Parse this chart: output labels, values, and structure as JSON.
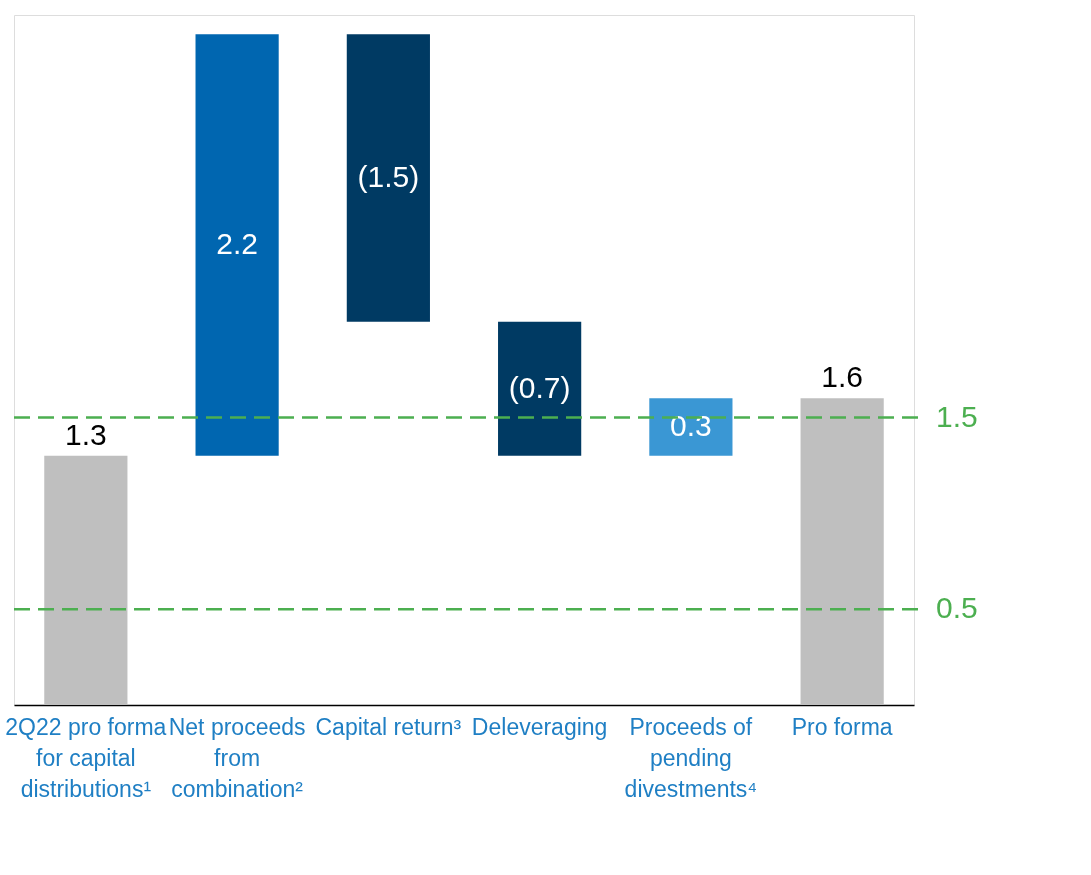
{
  "chart_data": {
    "type": "bar",
    "categories": [
      "2Q22 pro forma for capital distributions¹",
      "Net proceeds from combination²",
      "Capital return³",
      "Deleveraging",
      "Proceeds of pending divestments⁴",
      "Pro forma"
    ],
    "values": [
      1.3,
      2.2,
      -1.5,
      -0.7,
      0.3,
      1.6
    ],
    "base": [
      0,
      1.3,
      3.5,
      2.0,
      1.3,
      0
    ],
    "colors": [
      "#bfbfbf",
      "#0066b0",
      "#003a63",
      "#003a63",
      "#3a97d4",
      "#bfbfbf"
    ],
    "value_labels": [
      "1.3",
      "2.2",
      "(1.5)",
      "(0.7)",
      "0.3",
      "1.6"
    ],
    "ylim": [
      0,
      3.6
    ],
    "ref_lines": [
      {
        "axis": "y",
        "value": 1.5,
        "label": "1.5",
        "color": "#4caf50",
        "line_style": "dashed"
      },
      {
        "axis": "y",
        "value": 0.5,
        "label": "0.5",
        "color": "#4caf50",
        "line_style": "dashed"
      }
    ],
    "tick_labels": "x",
    "grid": false
  }
}
